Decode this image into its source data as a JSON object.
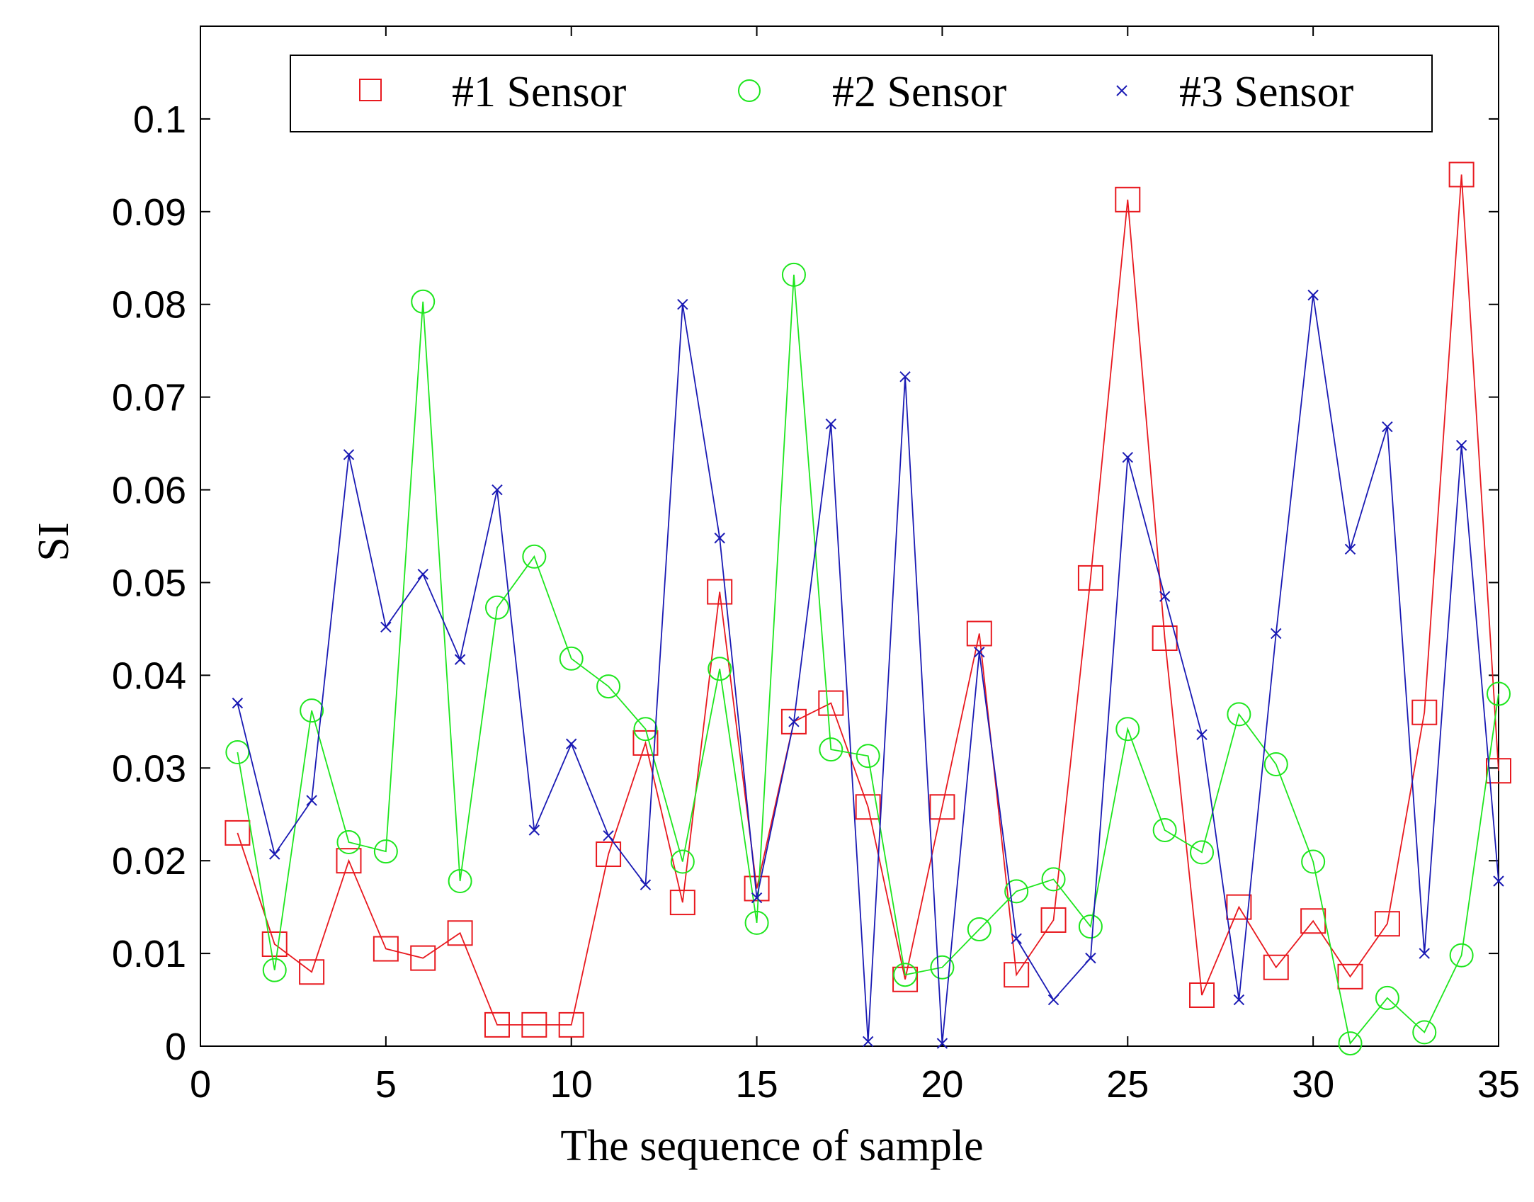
{
  "chart_data": {
    "type": "line",
    "title": "",
    "xlabel": "The sequence of sample",
    "ylabel": "SI",
    "xlim": [
      0,
      35
    ],
    "ylim": [
      0,
      0.11
    ],
    "xticks": [
      0,
      5,
      10,
      15,
      20,
      25,
      30,
      35
    ],
    "xtick_labels": [
      "0",
      "5",
      "10",
      "15",
      "20",
      "25",
      "30",
      "35"
    ],
    "yticks": [
      0,
      0.01,
      0.02,
      0.03,
      0.04,
      0.05,
      0.06,
      0.07,
      0.08,
      0.09,
      0.1
    ],
    "ytick_labels": [
      "0",
      "0.01",
      "0.02",
      "0.03",
      "0.04",
      "0.05",
      "0.06",
      "0.07",
      "0.08",
      "0.09",
      "0.1"
    ],
    "grid": false,
    "legend_position": "top",
    "x": [
      1,
      2,
      3,
      4,
      5,
      6,
      7,
      8,
      9,
      10,
      11,
      12,
      13,
      14,
      15,
      16,
      17,
      18,
      19,
      20,
      21,
      22,
      23,
      24,
      25,
      26,
      27,
      28,
      29,
      30,
      31,
      32,
      33,
      34,
      35
    ],
    "series": [
      {
        "name": "#1 Sensor",
        "marker": "square",
        "color": "#e8191f",
        "values": [
          0.023,
          0.011,
          0.008,
          0.02,
          0.0105,
          0.0095,
          0.0122,
          0.0023,
          0.0023,
          0.0023,
          0.0207,
          0.0327,
          0.0155,
          0.049,
          0.017,
          0.035,
          0.037,
          0.0258,
          0.0072,
          0.0258,
          0.0445,
          0.0077,
          0.0136,
          0.0505,
          0.0913,
          0.044,
          0.0055,
          0.015,
          0.0085,
          0.0135,
          0.0075,
          0.0132,
          0.036,
          0.094,
          0.0297
        ]
      },
      {
        "name": "#2 Sensor",
        "marker": "circle",
        "color": "#1ee61e",
        "values": [
          0.0317,
          0.0082,
          0.0362,
          0.022,
          0.021,
          0.0803,
          0.0178,
          0.0473,
          0.0528,
          0.0418,
          0.0388,
          0.0342,
          0.0199,
          0.0407,
          0.0133,
          0.0832,
          0.032,
          0.0313,
          0.0077,
          0.0085,
          0.0126,
          0.0167,
          0.018,
          0.0129,
          0.0342,
          0.0233,
          0.0209,
          0.0358,
          0.0304,
          0.0199,
          0.0003,
          0.0052,
          0.0015,
          0.0098,
          0.038
        ]
      },
      {
        "name": "#3 Sensor",
        "marker": "x",
        "color": "#1a1ab4",
        "values": [
          0.037,
          0.0207,
          0.0265,
          0.0638,
          0.0452,
          0.0509,
          0.0417,
          0.06,
          0.0233,
          0.0326,
          0.0227,
          0.0174,
          0.08,
          0.0548,
          0.016,
          0.035,
          0.0671,
          0.0005,
          0.0722,
          0.0003,
          0.0425,
          0.0116,
          0.005,
          0.0095,
          0.0635,
          0.0485,
          0.0336,
          0.005,
          0.0445,
          0.081,
          0.0536,
          0.0668,
          0.01,
          0.0648,
          0.0178
        ]
      }
    ]
  }
}
